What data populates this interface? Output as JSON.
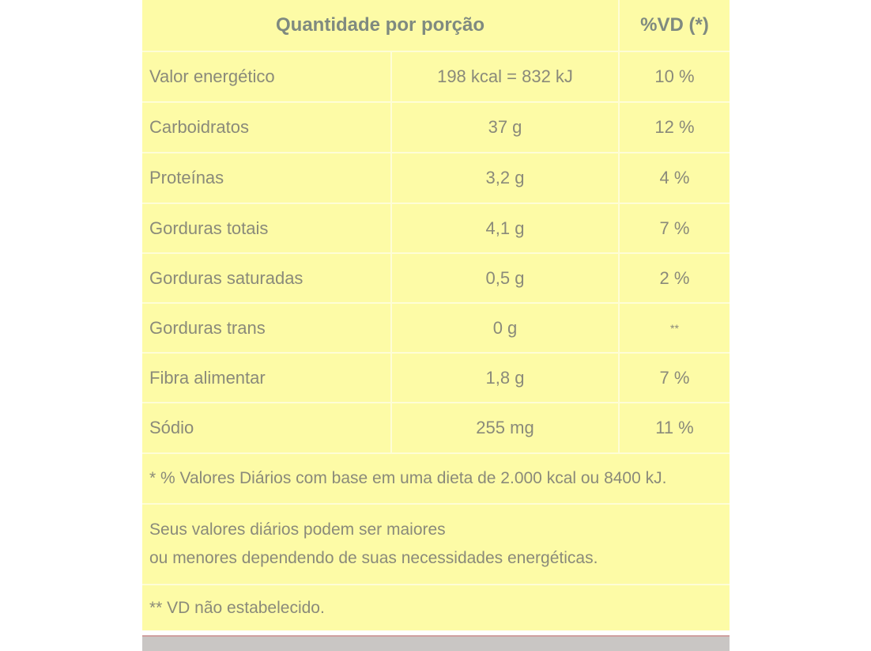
{
  "table": {
    "header": {
      "quantity": "Quantidade por porção",
      "dv": "%VD (*)"
    },
    "rows": [
      {
        "name": "Valor energético",
        "amount": "198 kcal = 832 kJ",
        "dv": "10 %"
      },
      {
        "name": "Carboidratos",
        "amount": "37 g",
        "dv": "12 %"
      },
      {
        "name": "Proteínas",
        "amount": "3,2 g",
        "dv": "4 %"
      },
      {
        "name": "Gorduras totais",
        "amount": "4,1 g",
        "dv": "7 %"
      },
      {
        "name": "Gorduras saturadas",
        "amount": "0,5 g",
        "dv": "2 %"
      },
      {
        "name": "Gorduras trans",
        "amount": "0 g",
        "dv": "**"
      },
      {
        "name": "Fibra alimentar",
        "amount": "1,8 g",
        "dv": "7 %"
      },
      {
        "name": "Sódio",
        "amount": "255 mg",
        "dv": "11 %"
      }
    ],
    "notes": {
      "footnote1": "* % Valores Diários com base em uma dieta de 2.000 kcal ou 8400 kJ.",
      "footnote2_line1": "Seus valores diários podem ser maiores",
      "footnote2_line2": "ou menores dependendo de suas necessidades energéticas.",
      "footnote3": "** VD não estabelecido."
    }
  }
}
